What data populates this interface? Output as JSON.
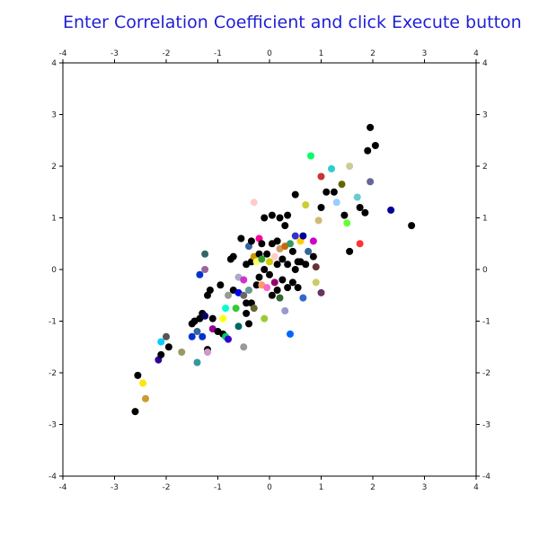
{
  "header": {
    "instruction": "Enter Correlation Coefficient and click Execute button"
  },
  "chart_data": {
    "type": "scatter",
    "title": "",
    "xlabel": "",
    "ylabel": "",
    "xlim": [
      -4,
      4
    ],
    "ylim": [
      -4,
      4
    ],
    "x_ticks": [
      "-4",
      "-3",
      "-2",
      "-1",
      "0",
      "1",
      "2",
      "3",
      "4"
    ],
    "y_ticks": [
      "-4",
      "-3",
      "-2",
      "-1",
      "0",
      "1",
      "2",
      "3",
      "4"
    ],
    "grid": false,
    "marker_color_default": "#000000",
    "points": [
      {
        "x": -2.6,
        "y": -2.75,
        "color": "#000000"
      },
      {
        "x": -2.55,
        "y": -2.05,
        "color": "#000000"
      },
      {
        "x": -2.45,
        "y": -2.2,
        "color": "#ffe600"
      },
      {
        "x": -2.4,
        "y": -2.5,
        "color": "#cc9933"
      },
      {
        "x": -2.15,
        "y": -1.75,
        "color": "#330099"
      },
      {
        "x": -2.1,
        "y": -1.65,
        "color": "#000000"
      },
      {
        "x": -2.1,
        "y": -1.4,
        "color": "#00ccff"
      },
      {
        "x": -2.0,
        "y": -1.3,
        "color": "#555555"
      },
      {
        "x": -1.95,
        "y": -1.5,
        "color": "#000000"
      },
      {
        "x": -1.7,
        "y": -1.6,
        "color": "#999966"
      },
      {
        "x": -1.5,
        "y": -1.3,
        "color": "#0033cc"
      },
      {
        "x": -1.5,
        "y": -1.05,
        "color": "#000000"
      },
      {
        "x": -1.45,
        "y": -1.0,
        "color": "#000000"
      },
      {
        "x": -1.4,
        "y": -1.2,
        "color": "#336699"
      },
      {
        "x": -1.4,
        "y": -1.8,
        "color": "#339999"
      },
      {
        "x": -1.35,
        "y": -0.95,
        "color": "#000000"
      },
      {
        "x": -1.3,
        "y": -0.85,
        "color": "#000000"
      },
      {
        "x": -1.3,
        "y": -1.3,
        "color": "#0033cc"
      },
      {
        "x": -1.25,
        "y": -0.9,
        "color": "#000066"
      },
      {
        "x": -1.2,
        "y": -1.55,
        "color": "#000000"
      },
      {
        "x": -1.2,
        "y": -1.6,
        "color": "#cc99cc"
      },
      {
        "x": -1.15,
        "y": -0.4,
        "color": "#000000"
      },
      {
        "x": -1.1,
        "y": -0.95,
        "color": "#000000"
      },
      {
        "x": -1.1,
        "y": -1.15,
        "color": "#990099"
      },
      {
        "x": -1.35,
        "y": -0.1,
        "color": "#0033cc"
      },
      {
        "x": -1.2,
        "y": -0.5,
        "color": "#000000"
      },
      {
        "x": -1.25,
        "y": 0.3,
        "color": "#336666"
      },
      {
        "x": -1.25,
        "y": 0.0,
        "color": "#996699"
      },
      {
        "x": -1.0,
        "y": -1.2,
        "color": "#000000"
      },
      {
        "x": -0.95,
        "y": -0.3,
        "color": "#000000"
      },
      {
        "x": -0.9,
        "y": -1.25,
        "color": "#000000"
      },
      {
        "x": -0.9,
        "y": -0.95,
        "color": "#ffff00"
      },
      {
        "x": -0.85,
        "y": -0.75,
        "color": "#00ffcc"
      },
      {
        "x": -0.85,
        "y": -1.3,
        "color": "#00cc66"
      },
      {
        "x": -0.8,
        "y": -0.5,
        "color": "#999999"
      },
      {
        "x": -0.8,
        "y": -1.35,
        "color": "#3300cc"
      },
      {
        "x": -0.75,
        "y": 0.2,
        "color": "#000000"
      },
      {
        "x": -0.7,
        "y": 0.25,
        "color": "#000000"
      },
      {
        "x": -0.7,
        "y": -0.4,
        "color": "#000000"
      },
      {
        "x": -0.65,
        "y": -0.75,
        "color": "#33cc33"
      },
      {
        "x": -0.6,
        "y": -0.15,
        "color": "#aaaacc"
      },
      {
        "x": -0.6,
        "y": -0.45,
        "color": "#0000ff"
      },
      {
        "x": -0.6,
        "y": -1.1,
        "color": "#006666"
      },
      {
        "x": -0.55,
        "y": 0.6,
        "color": "#000000"
      },
      {
        "x": -0.5,
        "y": -0.2,
        "color": "#cc33cc"
      },
      {
        "x": -0.5,
        "y": -0.5,
        "color": "#666666"
      },
      {
        "x": -0.5,
        "y": -1.5,
        "color": "#999999"
      },
      {
        "x": -0.45,
        "y": -0.65,
        "color": "#000000"
      },
      {
        "x": -0.45,
        "y": -0.85,
        "color": "#000000"
      },
      {
        "x": -0.45,
        "y": 0.1,
        "color": "#000000"
      },
      {
        "x": -0.4,
        "y": 0.45,
        "color": "#336699"
      },
      {
        "x": -0.4,
        "y": -0.4,
        "color": "#669999"
      },
      {
        "x": -0.4,
        "y": -1.05,
        "color": "#000000"
      },
      {
        "x": -0.35,
        "y": 0.55,
        "color": "#000000"
      },
      {
        "x": -0.35,
        "y": 0.15,
        "color": "#000000"
      },
      {
        "x": -0.35,
        "y": -0.65,
        "color": "#000000"
      },
      {
        "x": -0.3,
        "y": 1.3,
        "color": "#ffcccc"
      },
      {
        "x": -0.3,
        "y": 0.25,
        "color": "#cc9900"
      },
      {
        "x": -0.3,
        "y": -0.75,
        "color": "#666633"
      },
      {
        "x": -0.25,
        "y": 0.15,
        "color": "#ffff66"
      },
      {
        "x": -0.25,
        "y": -0.3,
        "color": "#000000"
      },
      {
        "x": -0.2,
        "y": 0.6,
        "color": "#ff0099"
      },
      {
        "x": -0.2,
        "y": 0.3,
        "color": "#000000"
      },
      {
        "x": -0.2,
        "y": -0.15,
        "color": "#000000"
      },
      {
        "x": -0.15,
        "y": 0.5,
        "color": "#000000"
      },
      {
        "x": -0.15,
        "y": 0.2,
        "color": "#339933"
      },
      {
        "x": -0.15,
        "y": -0.3,
        "color": "#ff9966"
      },
      {
        "x": -0.1,
        "y": 1.0,
        "color": "#000000"
      },
      {
        "x": -0.1,
        "y": 0.0,
        "color": "#000000"
      },
      {
        "x": -0.1,
        "y": -0.95,
        "color": "#99cc33"
      },
      {
        "x": -0.05,
        "y": 0.3,
        "color": "#000000"
      },
      {
        "x": -0.05,
        "y": -0.35,
        "color": "#ff66cc"
      },
      {
        "x": 0.0,
        "y": 0.15,
        "color": "#cccc00"
      },
      {
        "x": 0.0,
        "y": -0.1,
        "color": "#000000"
      },
      {
        "x": 0.05,
        "y": 1.05,
        "color": "#000000"
      },
      {
        "x": 0.05,
        "y": 0.5,
        "color": "#000000"
      },
      {
        "x": 0.05,
        "y": -0.5,
        "color": "#000000"
      },
      {
        "x": 0.1,
        "y": 0.25,
        "color": "#ffcccc"
      },
      {
        "x": 0.1,
        "y": -0.25,
        "color": "#990066"
      },
      {
        "x": 0.15,
        "y": 0.55,
        "color": "#000000"
      },
      {
        "x": 0.15,
        "y": 0.1,
        "color": "#000000"
      },
      {
        "x": 0.15,
        "y": -0.4,
        "color": "#000000"
      },
      {
        "x": 0.2,
        "y": 1.0,
        "color": "#000000"
      },
      {
        "x": 0.2,
        "y": 0.4,
        "color": "#cc9966"
      },
      {
        "x": 0.2,
        "y": -0.55,
        "color": "#336633"
      },
      {
        "x": 0.25,
        "y": 0.2,
        "color": "#000000"
      },
      {
        "x": 0.25,
        "y": -0.2,
        "color": "#000000"
      },
      {
        "x": 0.3,
        "y": 0.85,
        "color": "#000000"
      },
      {
        "x": 0.3,
        "y": 0.45,
        "color": "#cc6600"
      },
      {
        "x": 0.3,
        "y": -0.8,
        "color": "#9999cc"
      },
      {
        "x": 0.35,
        "y": 1.05,
        "color": "#000000"
      },
      {
        "x": 0.35,
        "y": 0.1,
        "color": "#000000"
      },
      {
        "x": 0.35,
        "y": -0.35,
        "color": "#000000"
      },
      {
        "x": 0.4,
        "y": 0.5,
        "color": "#339966"
      },
      {
        "x": 0.4,
        "y": -1.25,
        "color": "#0066ff"
      },
      {
        "x": 0.45,
        "y": 0.35,
        "color": "#000000"
      },
      {
        "x": 0.45,
        "y": -0.25,
        "color": "#000000"
      },
      {
        "x": 0.5,
        "y": 1.45,
        "color": "#000000"
      },
      {
        "x": 0.5,
        "y": 0.65,
        "color": "#3333cc"
      },
      {
        "x": 0.5,
        "y": 0.0,
        "color": "#000000"
      },
      {
        "x": 0.55,
        "y": 0.15,
        "color": "#000000"
      },
      {
        "x": 0.55,
        "y": -0.35,
        "color": "#000000"
      },
      {
        "x": 0.6,
        "y": 0.55,
        "color": "#ffcc00"
      },
      {
        "x": 0.6,
        "y": 0.15,
        "color": "#000000"
      },
      {
        "x": 0.65,
        "y": 0.65,
        "color": "#000099"
      },
      {
        "x": 0.65,
        "y": -0.55,
        "color": "#3366cc"
      },
      {
        "x": 0.7,
        "y": 1.25,
        "color": "#cccc33"
      },
      {
        "x": 0.7,
        "y": 0.1,
        "color": "#000000"
      },
      {
        "x": 0.75,
        "y": 0.35,
        "color": "#336699"
      },
      {
        "x": 0.8,
        "y": 2.2,
        "color": "#00ff66"
      },
      {
        "x": 0.85,
        "y": 0.25,
        "color": "#000000"
      },
      {
        "x": 0.85,
        "y": 0.55,
        "color": "#cc00cc"
      },
      {
        "x": 0.9,
        "y": -0.25,
        "color": "#cccc66"
      },
      {
        "x": 0.9,
        "y": 0.05,
        "color": "#663333"
      },
      {
        "x": 0.95,
        "y": 0.95,
        "color": "#ccbb77"
      },
      {
        "x": 1.0,
        "y": 1.8,
        "color": "#cc3333"
      },
      {
        "x": 1.0,
        "y": 1.2,
        "color": "#000000"
      },
      {
        "x": 1.0,
        "y": -0.45,
        "color": "#663366"
      },
      {
        "x": 1.1,
        "y": 1.5,
        "color": "#000000"
      },
      {
        "x": 1.2,
        "y": 1.95,
        "color": "#33cccc"
      },
      {
        "x": 1.25,
        "y": 1.5,
        "color": "#000000"
      },
      {
        "x": 1.3,
        "y": 1.3,
        "color": "#99ccff"
      },
      {
        "x": 1.4,
        "y": 1.65,
        "color": "#666600"
      },
      {
        "x": 1.45,
        "y": 1.05,
        "color": "#000000"
      },
      {
        "x": 1.5,
        "y": 0.9,
        "color": "#66ff33"
      },
      {
        "x": 1.55,
        "y": 2.0,
        "color": "#cccc99"
      },
      {
        "x": 1.55,
        "y": 0.35,
        "color": "#000000"
      },
      {
        "x": 1.7,
        "y": 1.4,
        "color": "#66cccc"
      },
      {
        "x": 1.75,
        "y": 1.2,
        "color": "#000000"
      },
      {
        "x": 1.75,
        "y": 0.5,
        "color": "#ff3333"
      },
      {
        "x": 1.85,
        "y": 1.1,
        "color": "#000000"
      },
      {
        "x": 1.9,
        "y": 2.3,
        "color": "#000000"
      },
      {
        "x": 1.95,
        "y": 1.7,
        "color": "#666699"
      },
      {
        "x": 1.95,
        "y": 2.75,
        "color": "#000000"
      },
      {
        "x": 2.05,
        "y": 2.4,
        "color": "#000000"
      },
      {
        "x": 2.35,
        "y": 1.15,
        "color": "#000099"
      },
      {
        "x": 2.75,
        "y": 0.85,
        "color": "#000000"
      }
    ]
  }
}
